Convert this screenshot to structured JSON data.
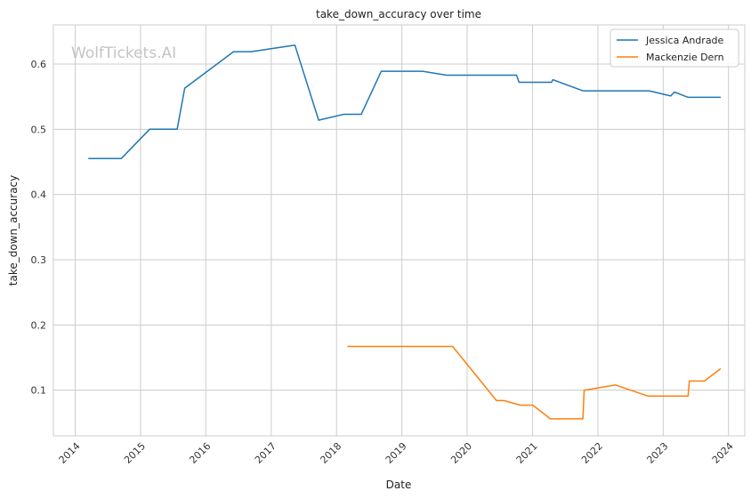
{
  "chart_data": {
    "type": "line",
    "title": "take_down_accuracy over time",
    "xlabel": "Date",
    "ylabel": "take_down_accuracy",
    "watermark": "WolfTickets.AI",
    "x_ticks": [
      "2014",
      "2015",
      "2016",
      "2017",
      "2018",
      "2019",
      "2020",
      "2021",
      "2022",
      "2023",
      "2024"
    ],
    "y_ticks": [
      "0.1",
      "0.2",
      "0.3",
      "0.4",
      "0.5",
      "0.6"
    ],
    "xlim": [
      "2013-09-01",
      "2024-04-01"
    ],
    "ylim": [
      0.03,
      0.66
    ],
    "grid": true,
    "legend_position": "top-right",
    "series": [
      {
        "name": "Jessica Andrade",
        "color": "#1f77b4",
        "points": [
          [
            "2014-03-15",
            0.455
          ],
          [
            "2014-09-15",
            0.455
          ],
          [
            "2015-02-21",
            0.5
          ],
          [
            "2015-07-25",
            0.5
          ],
          [
            "2015-09-05",
            0.563
          ],
          [
            "2016-06-04",
            0.619
          ],
          [
            "2016-09-10",
            0.619
          ],
          [
            "2017-05-13",
            0.629
          ],
          [
            "2017-09-23",
            0.514
          ],
          [
            "2018-02-10",
            0.523
          ],
          [
            "2018-05-19",
            0.523
          ],
          [
            "2018-09-08",
            0.589
          ],
          [
            "2019-04-27",
            0.589
          ],
          [
            "2019-09-07",
            0.583
          ],
          [
            "2020-10-03",
            0.583
          ],
          [
            "2020-10-17",
            0.572
          ],
          [
            "2021-04-17",
            0.572
          ],
          [
            "2021-04-24",
            0.576
          ],
          [
            "2021-10-09",
            0.559
          ],
          [
            "2022-10-15",
            0.559
          ],
          [
            "2023-02-12",
            0.551
          ],
          [
            "2023-03-04",
            0.557
          ],
          [
            "2023-05-20",
            0.549
          ],
          [
            "2023-11-18",
            0.549
          ]
        ]
      },
      {
        "name": "Mackenzie Dern",
        "color": "#ff7f0e",
        "points": [
          [
            "2018-03-03",
            0.167
          ],
          [
            "2019-10-12",
            0.167
          ],
          [
            "2020-06-13",
            0.084
          ],
          [
            "2020-07-25",
            0.084
          ],
          [
            "2020-10-24",
            0.077
          ],
          [
            "2021-01-02",
            0.077
          ],
          [
            "2021-04-10",
            0.056
          ],
          [
            "2021-10-09",
            0.056
          ],
          [
            "2021-10-16",
            0.1
          ],
          [
            "2022-04-09",
            0.108
          ],
          [
            "2022-10-08",
            0.091
          ],
          [
            "2023-05-20",
            0.091
          ],
          [
            "2023-05-27",
            0.114
          ],
          [
            "2023-08-19",
            0.114
          ],
          [
            "2023-11-18",
            0.133
          ]
        ]
      }
    ]
  }
}
